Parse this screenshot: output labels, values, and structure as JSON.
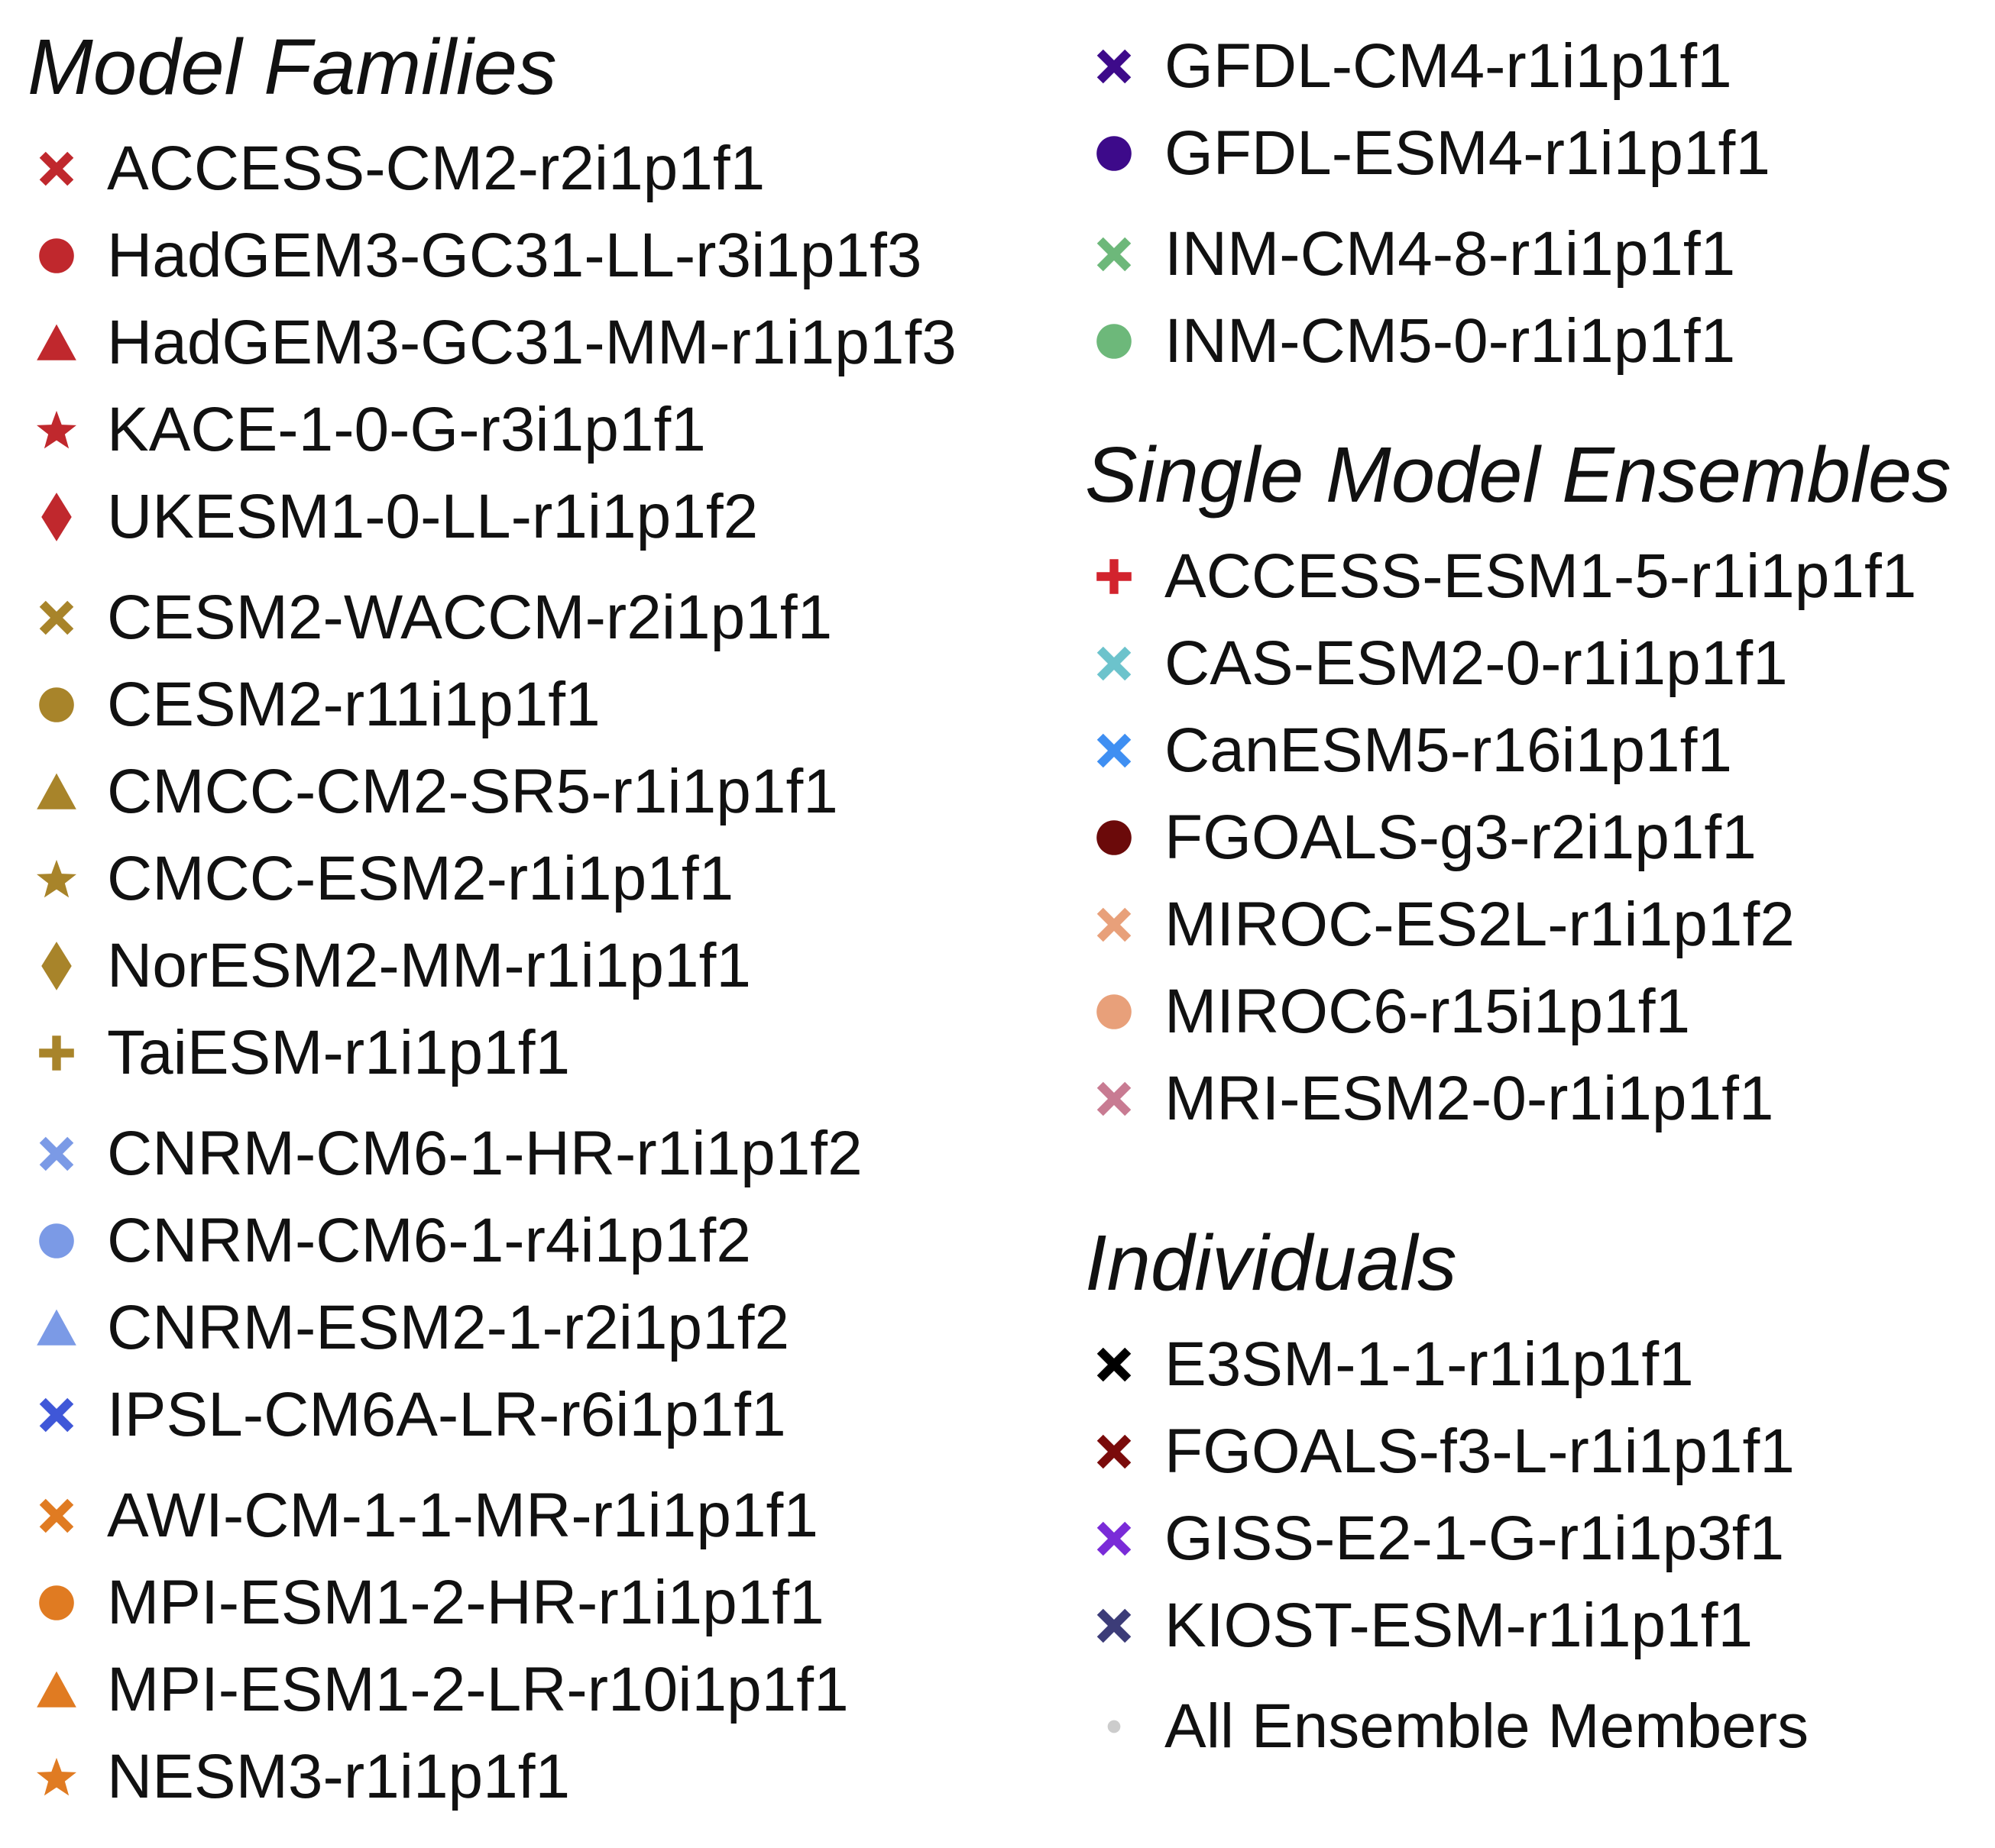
{
  "chart_data": {
    "type": "legend",
    "groups": [
      {
        "title": "Model Families",
        "subgroups": [
          [
            {
              "label": "ACCESS-CM2-r2i1p1f1",
              "marker": "x",
              "color": "#c0282d"
            },
            {
              "label": "HadGEM3-GC31-LL-r3i1p1f3",
              "marker": "circle",
              "color": "#c0282d"
            },
            {
              "label": "HadGEM3-GC31-MM-r1i1p1f3",
              "marker": "triangle",
              "color": "#c0282d"
            },
            {
              "label": "KACE-1-0-G-r3i1p1f1",
              "marker": "star",
              "color": "#c0282d"
            },
            {
              "label": "UKESM1-0-LL-r1i1p1f2",
              "marker": "diamond",
              "color": "#c0282d"
            }
          ],
          [
            {
              "label": "CESM2-WACCM-r2i1p1f1",
              "marker": "x",
              "color": "#a8842a"
            },
            {
              "label": "CESM2-r11i1p1f1",
              "marker": "circle",
              "color": "#a8842a"
            },
            {
              "label": "CMCC-CM2-SR5-r1i1p1f1",
              "marker": "triangle",
              "color": "#a8842a"
            },
            {
              "label": "CMCC-ESM2-r1i1p1f1",
              "marker": "star",
              "color": "#a8842a"
            },
            {
              "label": "NorESM2-MM-r1i1p1f1",
              "marker": "diamond",
              "color": "#a8842a"
            },
            {
              "label": "TaiESM-r1i1p1f1",
              "marker": "plus",
              "color": "#a8842a"
            }
          ],
          [
            {
              "label": "CNRM-CM6-1-HR-r1i1p1f2",
              "marker": "x",
              "color": "#7b9ae6"
            },
            {
              "label": "CNRM-CM6-1-r4i1p1f2",
              "marker": "circle",
              "color": "#7b9ae6"
            },
            {
              "label": "CNRM-ESM2-1-r2i1p1f2",
              "marker": "triangle",
              "color": "#7b9ae6"
            },
            {
              "label": "IPSL-CM6A-LR-r6i1p1f1",
              "marker": "x",
              "color": "#3f57d8"
            }
          ],
          [
            {
              "label": "AWI-CM-1-1-MR-r1i1p1f1",
              "marker": "x",
              "color": "#e07b22"
            },
            {
              "label": "MPI-ESM1-2-HR-r1i1p1f1",
              "marker": "circle",
              "color": "#e07b22"
            },
            {
              "label": "MPI-ESM1-2-LR-r10i1p1f1",
              "marker": "triangle",
              "color": "#e07b22"
            },
            {
              "label": "NESM3-r1i1p1f1",
              "marker": "star",
              "color": "#e07b22"
            }
          ],
          [
            {
              "label": "GFDL-CM4-r1i1p1f1",
              "marker": "x",
              "color": "#3d0a8a"
            },
            {
              "label": "GFDL-ESM4-r1i1p1f1",
              "marker": "circle",
              "color": "#3d0a8a"
            }
          ],
          [
            {
              "label": "INM-CM4-8-r1i1p1f1",
              "marker": "x",
              "color": "#6db87a"
            },
            {
              "label": "INM-CM5-0-r1i1p1f1",
              "marker": "circle",
              "color": "#6db87a"
            }
          ]
        ]
      },
      {
        "title": "Single Model Ensembles",
        "subgroups": [
          [
            {
              "label": "ACCESS-ESM1-5-r1i1p1f1",
              "marker": "plus",
              "color": "#d2232d"
            },
            {
              "label": "CAS-ESM2-0-r1i1p1f1",
              "marker": "x",
              "color": "#6cc3cc"
            },
            {
              "label": "CanESM5-r16i1p1f1",
              "marker": "x",
              "color": "#3f8ff2"
            },
            {
              "label": "FGOALS-g3-r2i1p1f1",
              "marker": "circle",
              "color": "#6b0a0a"
            },
            {
              "label": "MIROC-ES2L-r1i1p1f2",
              "marker": "x",
              "color": "#e8a07a"
            },
            {
              "label": "MIROC6-r15i1p1f1",
              "marker": "circle",
              "color": "#e8a07a"
            },
            {
              "label": "MRI-ESM2-0-r1i1p1f1",
              "marker": "x",
              "color": "#c87b92"
            }
          ]
        ]
      },
      {
        "title": "Individuals",
        "subgroups": [
          [
            {
              "label": "E3SM-1-1-r1i1p1f1",
              "marker": "x",
              "color": "#000000"
            },
            {
              "label": "FGOALS-f3-L-r1i1p1f1",
              "marker": "x",
              "color": "#7a0b0b"
            },
            {
              "label": "GISS-E2-1-G-r1i1p3f1",
              "marker": "x",
              "color": "#7a2bd8"
            },
            {
              "label": "KIOST-ESM-r1i1p1f1",
              "marker": "x",
              "color": "#3c3c78"
            }
          ],
          [
            {
              "label": "All Ensemble Members",
              "marker": "dot",
              "color": "#cccccc"
            }
          ]
        ]
      }
    ]
  }
}
